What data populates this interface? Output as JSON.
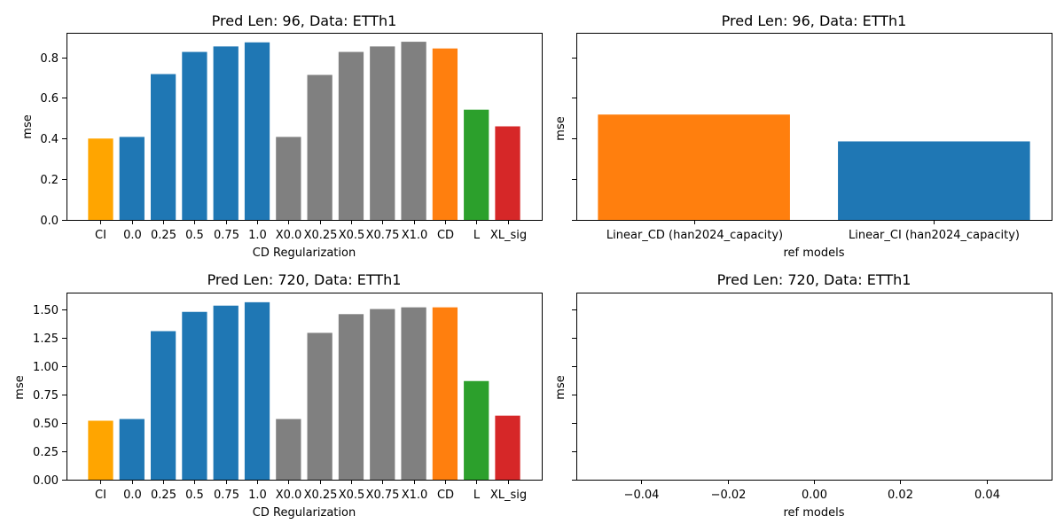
{
  "figure": {
    "background": "#ffffff"
  },
  "chart_data": [
    {
      "type": "bar",
      "title": "Pred Len: 96, Data: ETTh1",
      "xlabel": "CD Regularization",
      "ylabel": "mse",
      "categories": [
        "CI",
        "0.0",
        "0.25",
        "0.5",
        "0.75",
        "1.0",
        "X0.0",
        "X0.25",
        "X0.5",
        "X0.75",
        "X1.0",
        "CD",
        "L",
        "XL_sig"
      ],
      "values": [
        0.4,
        0.408,
        0.717,
        0.826,
        0.853,
        0.873,
        0.408,
        0.713,
        0.826,
        0.853,
        0.876,
        0.843,
        0.542,
        0.46
      ],
      "colors": [
        "#ffa500",
        "#1f77b4",
        "#1f77b4",
        "#1f77b4",
        "#1f77b4",
        "#1f77b4",
        "#808080",
        "#808080",
        "#808080",
        "#808080",
        "#808080",
        "#ff7f0e",
        "#2ca02c",
        "#d62728"
      ],
      "ylim": [
        0,
        0.92
      ],
      "yticks": [
        0.0,
        0.2,
        0.4,
        0.6,
        0.8
      ],
      "ytick_labels": [
        "0.0",
        "0.2",
        "0.4",
        "0.6",
        "0.8"
      ],
      "grid": false
    },
    {
      "type": "bar",
      "title": "Pred Len: 96, Data: ETTh1",
      "xlabel": "ref models",
      "ylabel": "mse",
      "categories": [
        "Linear_CD (han2024_capacity)",
        "Linear_CI (han2024_capacity)"
      ],
      "values": [
        0.518,
        0.386
      ],
      "colors": [
        "#ff7f0e",
        "#1f77b4"
      ],
      "ylim": [
        0,
        0.92
      ],
      "yticks": [
        0.0,
        0.2,
        0.4,
        0.6,
        0.8
      ],
      "ytick_labels": [
        "",
        "",
        "",
        "",
        ""
      ],
      "grid": false
    },
    {
      "type": "bar",
      "title": "Pred Len: 720, Data: ETTh1",
      "xlabel": "CD Regularization",
      "ylabel": "mse",
      "categories": [
        "CI",
        "0.0",
        "0.25",
        "0.5",
        "0.75",
        "1.0",
        "X0.0",
        "X0.25",
        "X0.5",
        "X0.75",
        "X1.0",
        "CD",
        "L",
        "XL_sig"
      ],
      "values": [
        0.52,
        0.535,
        1.31,
        1.48,
        1.535,
        1.565,
        0.535,
        1.295,
        1.46,
        1.505,
        1.52,
        1.52,
        0.87,
        0.565
      ],
      "colors": [
        "#ffa500",
        "#1f77b4",
        "#1f77b4",
        "#1f77b4",
        "#1f77b4",
        "#1f77b4",
        "#808080",
        "#808080",
        "#808080",
        "#808080",
        "#808080",
        "#ff7f0e",
        "#2ca02c",
        "#d62728"
      ],
      "ylim": [
        0,
        1.65
      ],
      "yticks": [
        0.0,
        0.25,
        0.5,
        0.75,
        1.0,
        1.25,
        1.5
      ],
      "ytick_labels": [
        "0.00",
        "0.25",
        "0.50",
        "0.75",
        "1.00",
        "1.25",
        "1.50"
      ],
      "grid": false
    },
    {
      "type": "bar",
      "title": "Pred Len: 720, Data: ETTh1",
      "xlabel": "ref models",
      "ylabel": "mse",
      "categories": [],
      "values": [],
      "colors": [],
      "ylim": [
        0,
        1.65
      ],
      "yticks": [
        0.0,
        0.25,
        0.5,
        0.75,
        1.0,
        1.25,
        1.5
      ],
      "ytick_labels": [
        "",
        "",
        "",
        "",
        "",
        "",
        ""
      ],
      "xlim": [
        -0.055,
        0.055
      ],
      "xticks": [
        -0.04,
        -0.02,
        0.0,
        0.02,
        0.04
      ],
      "xtick_labels": [
        "−0.04",
        "−0.02",
        "0.00",
        "0.02",
        "0.04"
      ],
      "grid": false
    }
  ]
}
